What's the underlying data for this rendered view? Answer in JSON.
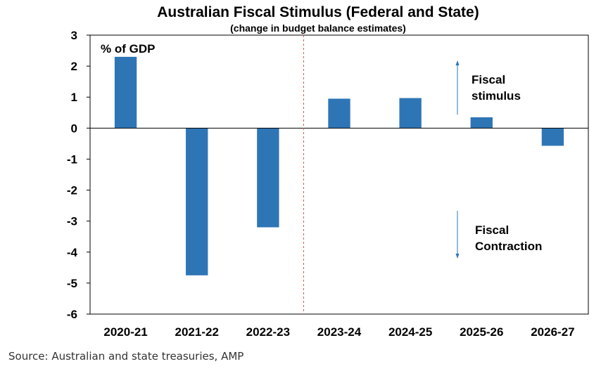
{
  "chart_data": {
    "type": "bar",
    "title": "Australian Fiscal Stimulus (Federal and State)",
    "subtitle": "(change in budget balance estimates)",
    "ylabel": "% of GDP",
    "xlabel": "",
    "categories": [
      "2020-21",
      "2021-22",
      "2022-23",
      "2023-24",
      "2024-25",
      "2025-26",
      "2026-27"
    ],
    "values": [
      2.3,
      -4.75,
      -3.2,
      0.95,
      0.97,
      0.35,
      -0.57
    ],
    "ylim": [
      -6,
      3
    ],
    "yticks": [
      3,
      2,
      1,
      0,
      -1,
      -2,
      -3,
      -4,
      -5,
      -6
    ],
    "grid": false,
    "divider_after_category": "2022-23",
    "annotations": {
      "stimulus_line1": "Fiscal",
      "stimulus_line2": "stimulus",
      "contraction_line1": "Fiscal",
      "contraction_line2": "Contraction"
    },
    "colors": {
      "bar": "#2E75B6",
      "divider": "#E05050",
      "arrow": "#2E75B6",
      "axis": "#000000"
    }
  },
  "source": "Source: Australian and state treasuries, AMP"
}
